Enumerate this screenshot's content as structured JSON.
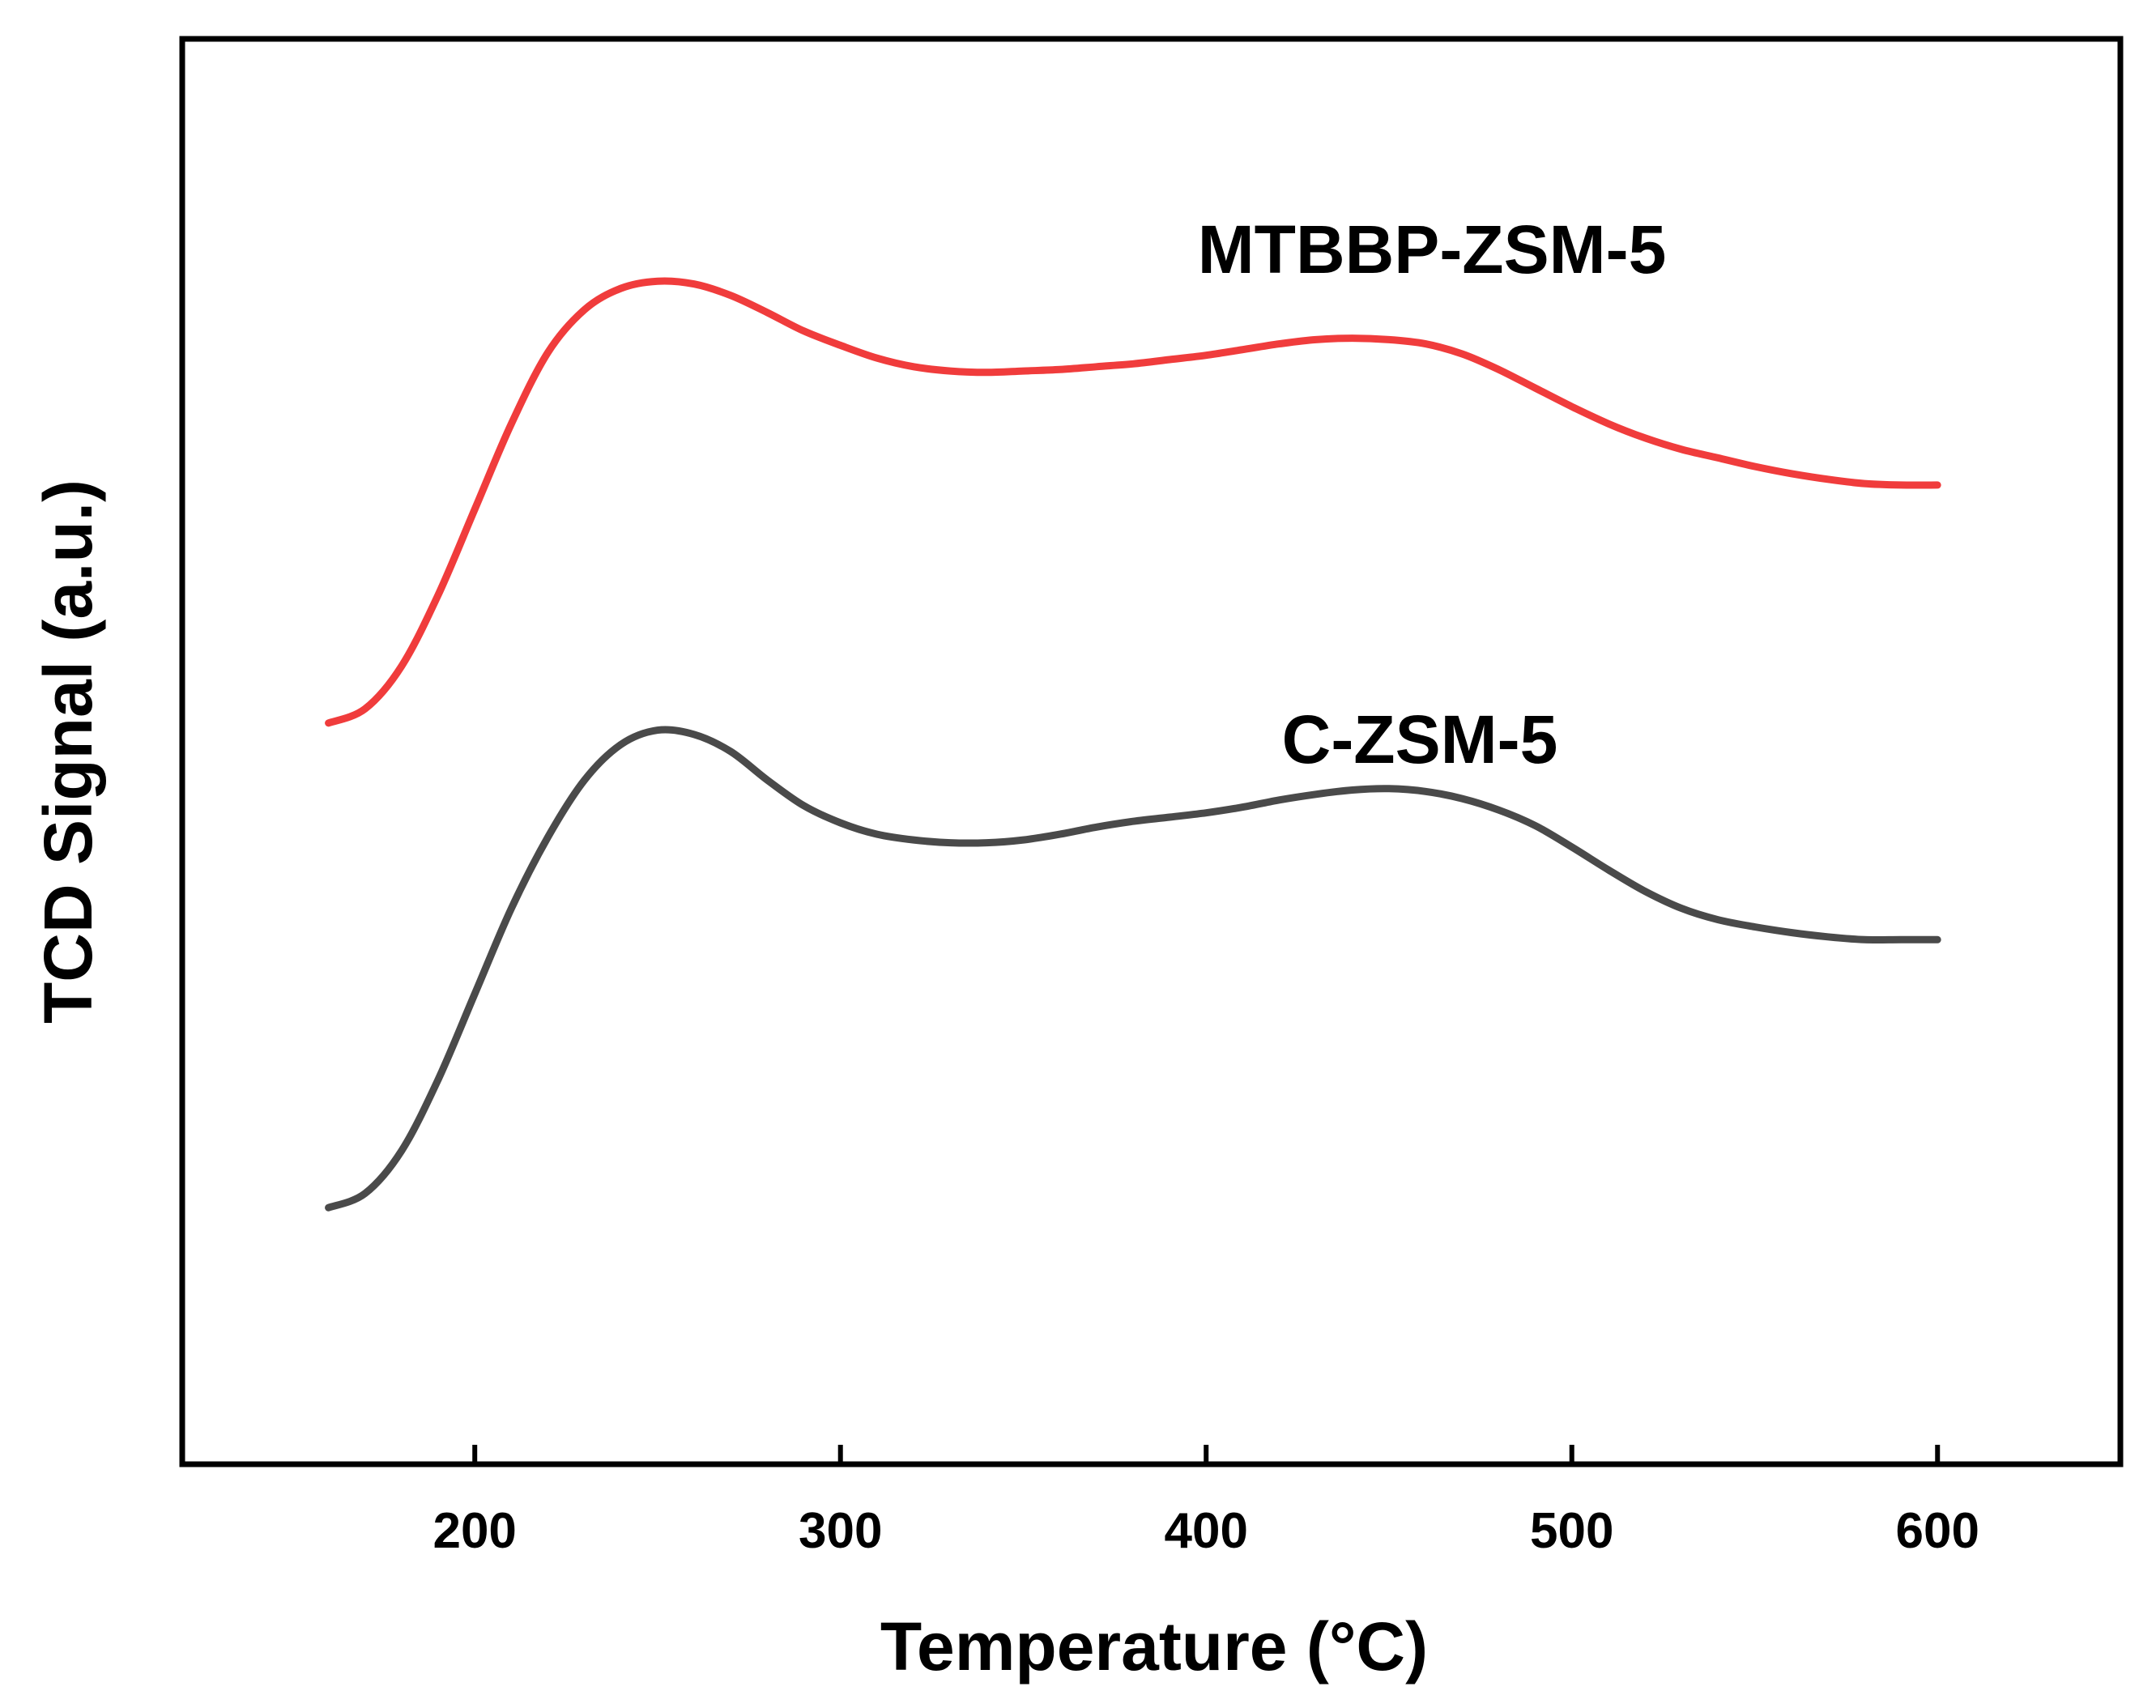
{
  "chart_data": {
    "type": "line",
    "title": "",
    "xlabel": "Temperature (°C)",
    "ylabel": "TCD Signal (a.u.)",
    "xlim": [
      120,
      650
    ],
    "ylim": [
      0,
      1
    ],
    "xticks": [
      200,
      300,
      400,
      500,
      600
    ],
    "yticks_shown": false,
    "grid": false,
    "legend": "none",
    "series": [
      {
        "name": "MTBBP-ZSM-5",
        "color": "#f03c3c",
        "x": [
          160,
          170,
          180,
          190,
          200,
          210,
          220,
          230,
          240,
          250,
          260,
          270,
          280,
          290,
          300,
          310,
          320,
          330,
          340,
          350,
          360,
          370,
          380,
          390,
          400,
          410,
          420,
          430,
          440,
          450,
          460,
          470,
          480,
          490,
          500,
          510,
          520,
          530,
          540,
          550,
          560,
          570,
          580,
          590,
          600
        ],
        "y": [
          0.52,
          0.53,
          0.56,
          0.61,
          0.67,
          0.73,
          0.78,
          0.81,
          0.825,
          0.83,
          0.828,
          0.82,
          0.808,
          0.795,
          0.785,
          0.776,
          0.77,
          0.767,
          0.766,
          0.767,
          0.768,
          0.77,
          0.772,
          0.775,
          0.778,
          0.782,
          0.786,
          0.789,
          0.79,
          0.789,
          0.786,
          0.779,
          0.768,
          0.755,
          0.742,
          0.73,
          0.72,
          0.712,
          0.706,
          0.7,
          0.695,
          0.691,
          0.688,
          0.687,
          0.687
        ],
        "label_annotation": "MTBBP-ZSM-5"
      },
      {
        "name": "C-ZSM-5",
        "color": "#4a4a4a",
        "x": [
          160,
          170,
          180,
          190,
          200,
          210,
          220,
          230,
          240,
          250,
          260,
          270,
          280,
          290,
          300,
          310,
          320,
          330,
          340,
          350,
          360,
          370,
          380,
          390,
          400,
          410,
          420,
          430,
          440,
          450,
          460,
          470,
          480,
          490,
          500,
          510,
          520,
          530,
          540,
          550,
          560,
          570,
          580,
          590,
          600
        ],
        "y": [
          0.18,
          0.19,
          0.22,
          0.27,
          0.33,
          0.39,
          0.44,
          0.48,
          0.505,
          0.515,
          0.512,
          0.5,
          0.48,
          0.462,
          0.45,
          0.442,
          0.438,
          0.436,
          0.436,
          0.438,
          0.442,
          0.447,
          0.451,
          0.454,
          0.457,
          0.461,
          0.466,
          0.47,
          0.473,
          0.474,
          0.472,
          0.467,
          0.459,
          0.448,
          0.433,
          0.417,
          0.402,
          0.39,
          0.382,
          0.377,
          0.373,
          0.37,
          0.368,
          0.368,
          0.368
        ],
        "label_annotation": "C-ZSM-5"
      }
    ]
  }
}
